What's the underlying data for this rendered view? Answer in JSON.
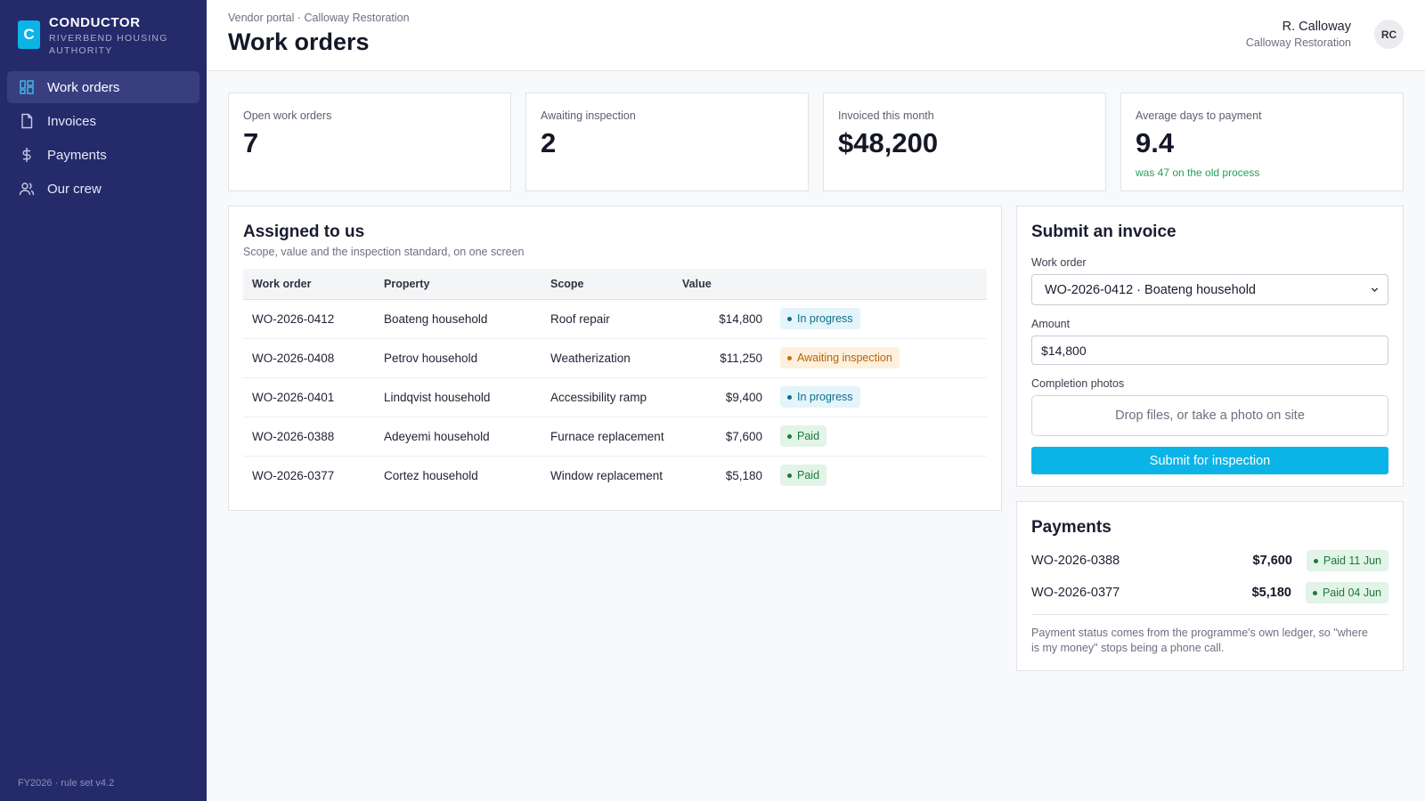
{
  "brand": {
    "logo_letter": "C",
    "name": "CONDUCTOR",
    "subtitle": "RIVERBEND HOUSING AUTHORITY",
    "accent": "#0ab4e6"
  },
  "sidebar": {
    "items": [
      {
        "label": "Work orders",
        "icon": "grid-icon",
        "active": true
      },
      {
        "label": "Invoices",
        "icon": "document-icon",
        "active": false
      },
      {
        "label": "Payments",
        "icon": "dollar-icon",
        "active": false
      },
      {
        "label": "Our crew",
        "icon": "people-icon",
        "active": false
      }
    ],
    "footer": "FY2026 · rule set v4.2"
  },
  "header": {
    "breadcrumb": "Vendor portal · Calloway Restoration",
    "title": "Work orders",
    "user_name": "R. Calloway",
    "user_org": "Calloway Restoration",
    "avatar_initials": "RC"
  },
  "kpis": [
    {
      "label": "Open work orders",
      "value": "7",
      "note": ""
    },
    {
      "label": "Awaiting inspection",
      "value": "2",
      "note": ""
    },
    {
      "label": "Invoiced this month",
      "value": "$48,200",
      "note": ""
    },
    {
      "label": "Average days to payment",
      "value": "9.4",
      "note": "was 47 on the old process"
    }
  ],
  "assigned": {
    "title": "Assigned to us",
    "subtitle": "Scope, value and the inspection standard, on one screen",
    "columns": [
      "Work order",
      "Property",
      "Scope",
      "Value",
      ""
    ],
    "rows": [
      {
        "id": "WO-2026-0412",
        "property": "Boateng household",
        "scope": "Roof repair",
        "value": "$14,800",
        "status": "In progress",
        "status_kind": "progress"
      },
      {
        "id": "WO-2026-0408",
        "property": "Petrov household",
        "scope": "Weatherization",
        "value": "$11,250",
        "status": "Awaiting inspection",
        "status_kind": "awaiting"
      },
      {
        "id": "WO-2026-0401",
        "property": "Lindqvist household",
        "scope": "Accessibility ramp",
        "value": "$9,400",
        "status": "In progress",
        "status_kind": "progress"
      },
      {
        "id": "WO-2026-0388",
        "property": "Adeyemi household",
        "scope": "Furnace replacement",
        "value": "$7,600",
        "status": "Paid",
        "status_kind": "paid"
      },
      {
        "id": "WO-2026-0377",
        "property": "Cortez household",
        "scope": "Window replacement",
        "value": "$5,180",
        "status": "Paid",
        "status_kind": "paid"
      }
    ]
  },
  "invoice": {
    "title": "Submit an invoice",
    "work_order_label": "Work order",
    "work_order_value": "WO-2026-0412 · Boateng household",
    "amount_label": "Amount",
    "amount_value": "$14,800",
    "photos_label": "Completion photos",
    "photos_placeholder": "Drop files, or take a photo on site",
    "submit_label": "Submit for inspection"
  },
  "payments": {
    "title": "Payments",
    "rows": [
      {
        "id": "WO-2026-0388",
        "amount": "$7,600",
        "status": "Paid 11 Jun"
      },
      {
        "id": "WO-2026-0377",
        "amount": "$5,180",
        "status": "Paid 04 Jun"
      }
    ],
    "note": "Payment status comes from the programme's own ledger, so \"where is my money\" stops being a phone call."
  }
}
